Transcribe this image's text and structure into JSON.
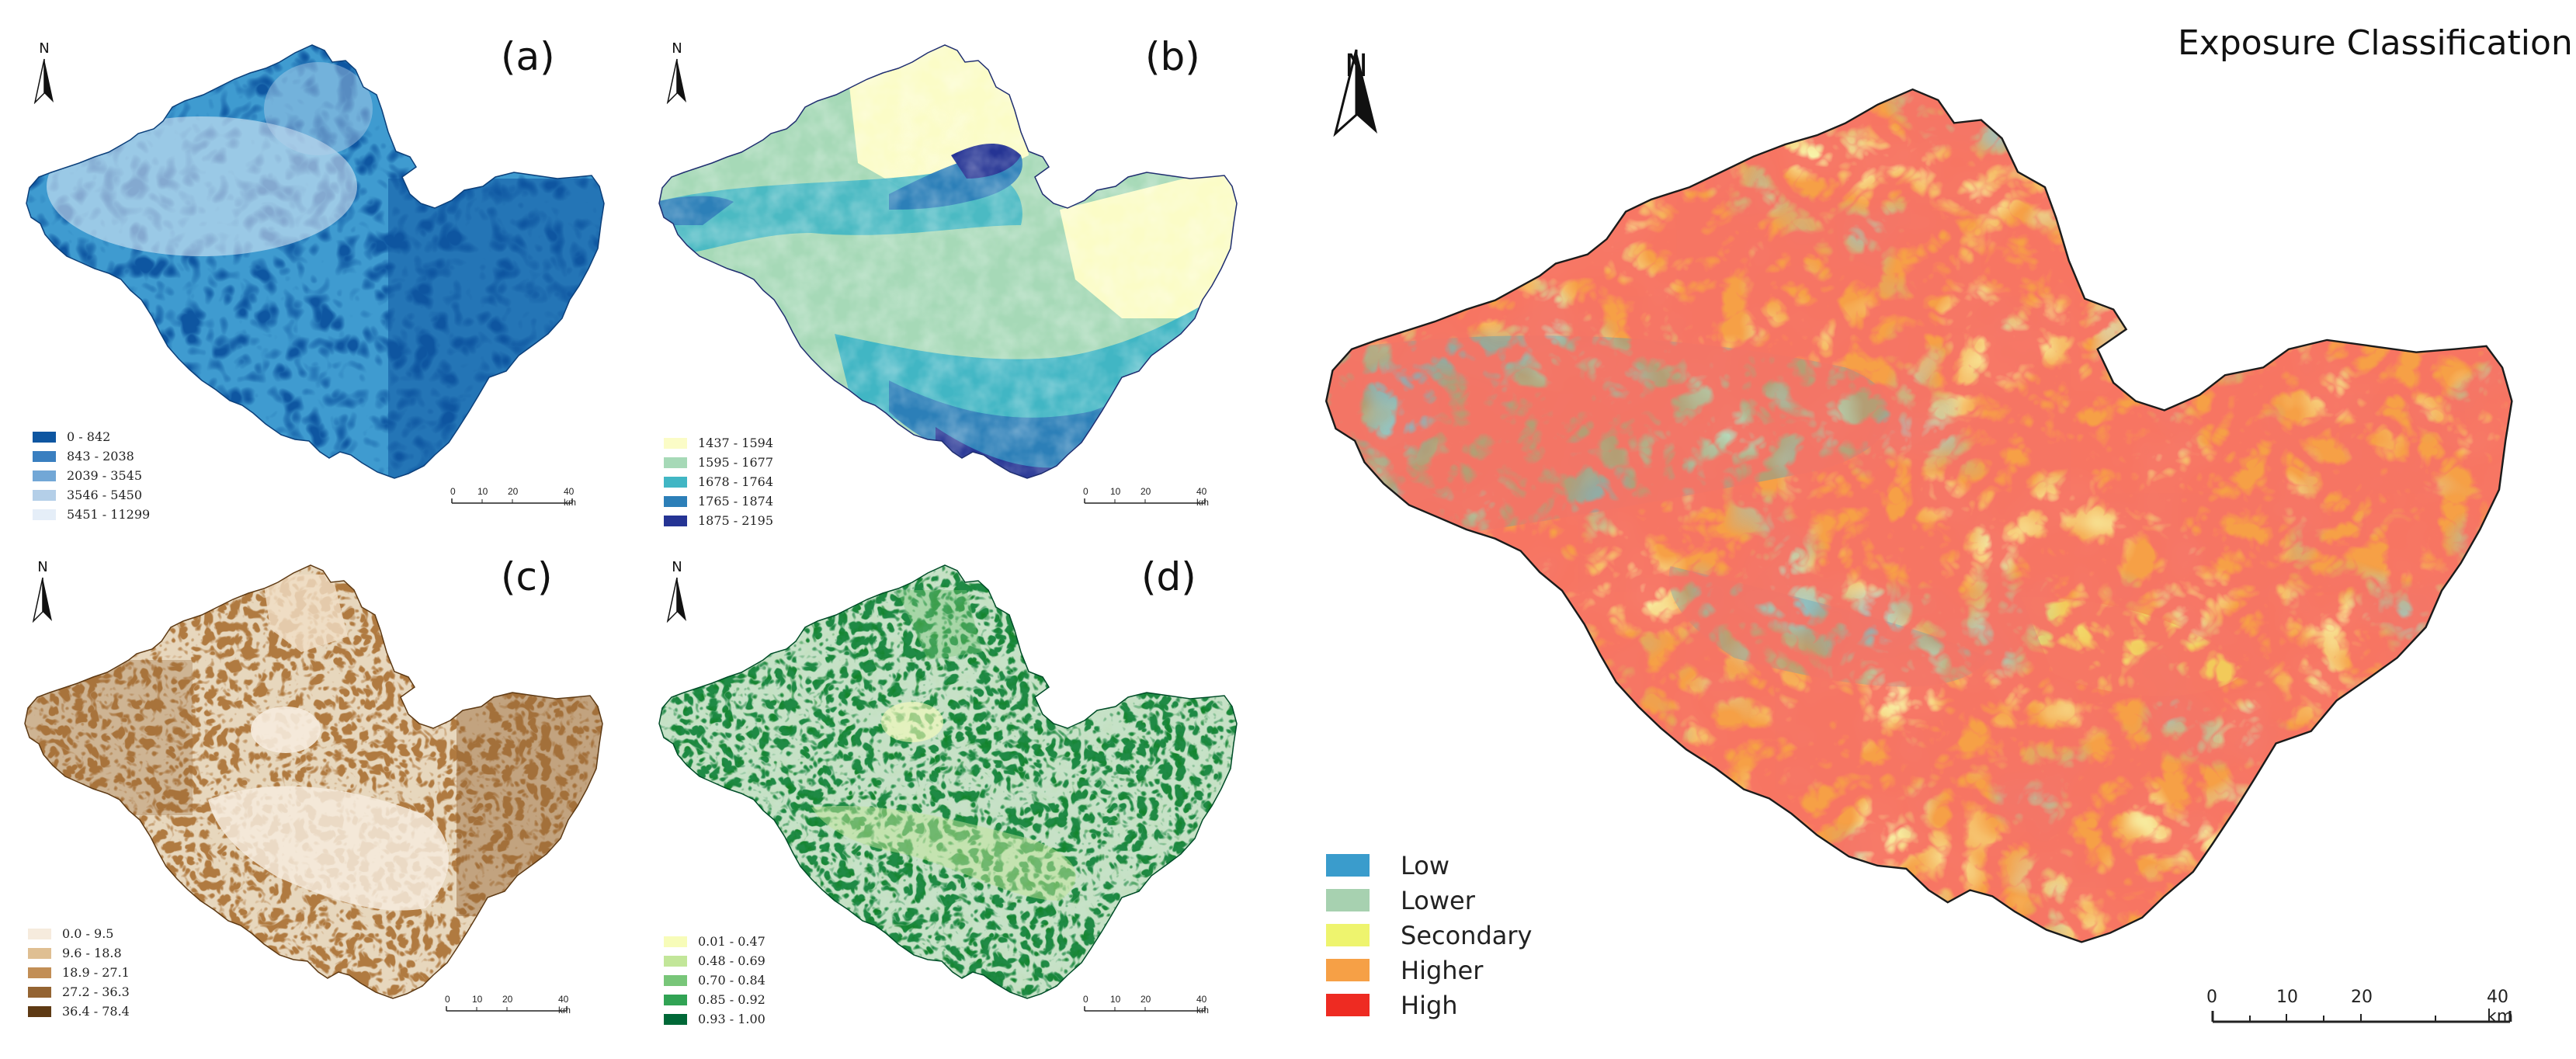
{
  "main": {
    "title": "Exposure Classification",
    "north": "N",
    "legend": [
      {
        "label": "Low",
        "color": "#3a9ccc"
      },
      {
        "label": "Lower",
        "color": "#a7d1b0"
      },
      {
        "label": "Secondary",
        "color": "#eef46e"
      },
      {
        "label": "Higher",
        "color": "#f6a046"
      },
      {
        "label": "High",
        "color": "#ee2b22"
      }
    ],
    "scale": [
      "0",
      "10",
      "20",
      "40 km"
    ]
  },
  "panels": [
    {
      "label": "(a)",
      "north": "N",
      "legend": [
        {
          "label": "0 - 842",
          "color": "#0e56a1"
        },
        {
          "label": "843 - 2038",
          "color": "#3a7fc0"
        },
        {
          "label": "2039 - 3545",
          "color": "#72a7d6"
        },
        {
          "label": "3546 - 5450",
          "color": "#b4cfe8"
        },
        {
          "label": "5451 - 11299",
          "color": "#e5eef8"
        }
      ],
      "scale": [
        "0",
        "10",
        "20",
        "40 km"
      ]
    },
    {
      "label": "(b)",
      "north": "N",
      "legend": [
        {
          "label": "1437 - 1594",
          "color": "#fbfcc7"
        },
        {
          "label": "1595 - 1677",
          "color": "#a6d9b7"
        },
        {
          "label": "1678 - 1764",
          "color": "#41b6c4"
        },
        {
          "label": "1765 - 1874",
          "color": "#2c7fb8"
        },
        {
          "label": "1875 - 2195",
          "color": "#253494"
        }
      ],
      "scale": [
        "0",
        "10",
        "20",
        "40 km"
      ]
    },
    {
      "label": "(c)",
      "north": "N",
      "legend": [
        {
          "label": "0.0 - 9.5",
          "color": "#f6ebdd"
        },
        {
          "label": "9.6 - 18.8",
          "color": "#dfbf92"
        },
        {
          "label": "18.9 - 27.1",
          "color": "#c28e55"
        },
        {
          "label": "27.2 - 36.3",
          "color": "#946432"
        },
        {
          "label": "36.4 - 78.4",
          "color": "#5e3a14"
        }
      ],
      "scale": [
        "0",
        "10",
        "20",
        "40 km"
      ]
    },
    {
      "label": "(d)",
      "north": "N",
      "legend": [
        {
          "label": "0.01 - 0.47",
          "color": "#f7fcb9"
        },
        {
          "label": "0.48 - 0.69",
          "color": "#c2e699"
        },
        {
          "label": "0.70 - 0.84",
          "color": "#78c679"
        },
        {
          "label": "0.85 - 0.92",
          "color": "#31a354"
        },
        {
          "label": "0.93 - 1.00",
          "color": "#006837"
        }
      ],
      "scale": [
        "0",
        "10",
        "20",
        "40 km"
      ]
    }
  ]
}
